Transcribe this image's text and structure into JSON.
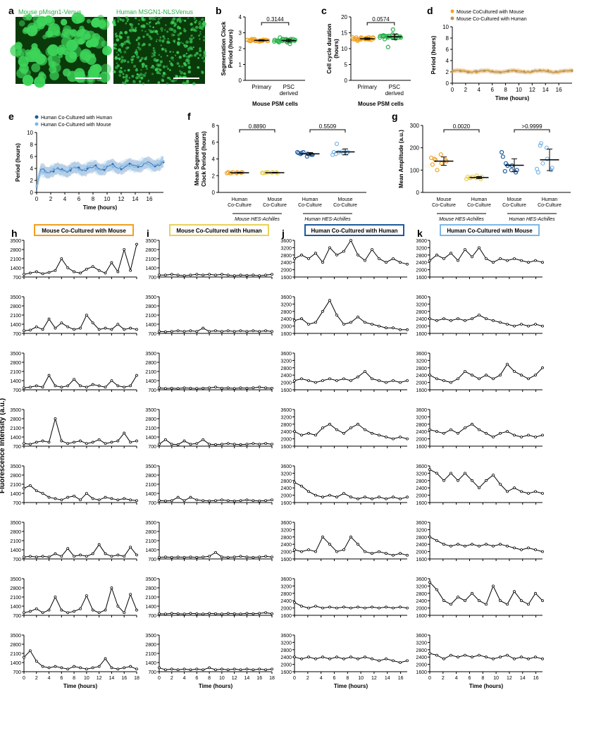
{
  "labels": {
    "a": "a",
    "b": "b",
    "c": "c",
    "d": "d",
    "e": "e",
    "f": "f",
    "g": "g",
    "h": "h",
    "i": "i",
    "j": "j",
    "k": "k"
  },
  "panel_a": {
    "left_title": "Mouse pMsgn1-Venus",
    "right_title": "Human MSGN1-NLSVenus",
    "title_color": "#2bb24c",
    "bg_color": "#0a3a0a"
  },
  "panel_b": {
    "title": "Segmentation Clock\nPeriod (hours)",
    "xlabel": "Mouse PSM cells",
    "categories": [
      "Primary",
      "PSC\nderived"
    ],
    "p_value": "0.3144",
    "ylim": [
      0,
      4
    ],
    "yticks": [
      0,
      1,
      2,
      3,
      4
    ],
    "groups": [
      {
        "color": "#f0a020",
        "values": [
          2.5,
          2.55,
          2.6,
          2.5,
          2.45,
          2.55,
          2.5,
          2.6,
          2.5,
          2.55,
          2.5,
          2.48,
          2.52,
          2.5,
          2.55,
          2.5,
          2.52,
          2.5,
          2.48,
          2.52,
          2.5,
          2.55
        ]
      },
      {
        "color": "#2bb24c",
        "values": [
          2.5,
          2.6,
          2.4,
          2.55,
          2.45,
          2.7,
          2.3,
          2.5,
          2.6,
          2.45,
          2.5,
          2.55,
          2.4,
          2.5,
          2.6,
          2.5,
          2.45,
          2.55,
          2.5,
          2.6,
          2.5,
          2.55,
          2.4,
          2.5,
          2.45,
          2.5,
          2.6
        ]
      }
    ]
  },
  "panel_c": {
    "title": "Cell cycle duration\n(hours)",
    "xlabel": "Mouse PSM cells",
    "categories": [
      "Primary",
      "PSC\nderived"
    ],
    "p_value": "0.0574",
    "ylim": [
      0,
      20
    ],
    "yticks": [
      0,
      5,
      10,
      15,
      20
    ],
    "groups": [
      {
        "color": "#f0a020",
        "values": [
          13,
          13.5,
          12.5,
          13.2,
          13,
          12.8,
          13.5,
          13,
          13.3,
          12.9,
          13.5,
          13,
          13.2,
          13,
          12.8,
          13.5,
          13,
          13.2,
          13,
          12.9,
          13.5,
          13,
          13.3,
          13,
          13.5,
          13
        ]
      },
      {
        "color": "#2bb24c",
        "values": [
          13.5,
          14,
          13,
          14.5,
          13.5,
          14,
          13.2,
          13.8,
          14,
          13.5,
          14.2,
          13.5,
          16,
          14,
          13.5,
          14,
          13.8,
          13.5,
          14,
          10.5,
          13.8,
          14,
          13.5,
          14.2,
          13.5,
          14
        ]
      }
    ]
  },
  "panel_d": {
    "legend": [
      "Mouse CoCultured with Mouse",
      "Mouse Co-Cultured with Human"
    ],
    "legend_colors": [
      "#f0a020",
      "#b8945a"
    ],
    "ylabel": "Period (hours)",
    "xlabel": "Time (hours)",
    "ylim": [
      0,
      10
    ],
    "yticks": [
      0,
      2,
      4,
      6,
      8,
      10
    ],
    "xlim": [
      0,
      18
    ],
    "xticks": [
      0,
      2,
      4,
      6,
      8,
      10,
      12,
      14,
      16
    ]
  },
  "panel_e": {
    "legend": [
      "Human Co-Cultured with Human",
      "Human Co-Cultured with Mouse"
    ],
    "legend_colors": [
      "#1e5a9e",
      "#7db8e8"
    ],
    "ylabel": "Period (hours)",
    "xlabel": "Time (hours)",
    "ylim": [
      0,
      10
    ],
    "yticks": [
      0,
      2,
      4,
      6,
      8,
      10
    ],
    "xlim": [
      0,
      18
    ],
    "xticks": [
      0,
      2,
      4,
      6,
      8,
      10,
      12,
      14,
      16
    ]
  },
  "panel_f": {
    "title": "Mean Segmentation\nClock Period (hours)",
    "ylim": [
      0,
      8
    ],
    "yticks": [
      0,
      2,
      4,
      6,
      8
    ],
    "p_values": [
      "0.8890",
      "0.5509"
    ],
    "group_labels": [
      "Human\nCo-Culture",
      "Mouse\nCo-Culture",
      "Human\nCo-Culture",
      "Mouse\nCo-Culture"
    ],
    "axis_labels": [
      "Mouse HES-Achilles",
      "Human HES-Achilles"
    ],
    "groups": [
      {
        "color": "#f0a020",
        "values": [
          2.3,
          2.4,
          2.3,
          2.4,
          2.3,
          2.4,
          2.35,
          2.3,
          2.4
        ]
      },
      {
        "color": "#e8d258",
        "values": [
          2.4,
          2.3,
          2.35,
          2.4,
          2.35,
          2.3,
          2.4,
          2.35,
          2.4
        ]
      },
      {
        "color": "#1e5a9e",
        "values": [
          4.7,
          4.5,
          4.8,
          4.6,
          4.3,
          4.7,
          4.5,
          4.6,
          4.8
        ]
      },
      {
        "color": "#7db8e8",
        "values": [
          5.8,
          4.8,
          4.5,
          4.7,
          4.9,
          4.8,
          4.7,
          4.6,
          4.8
        ]
      }
    ]
  },
  "panel_g": {
    "title": "Mean Amplitude (a.u.)",
    "ylim": [
      0,
      300
    ],
    "yticks": [
      0,
      100,
      200,
      300
    ],
    "p_values": [
      "0.0020",
      ">0.9999"
    ],
    "group_labels": [
      "Mouse\nCo-Culture",
      "Human\nCo-Culture",
      "Mouse\nCo-Culture",
      "Human\nCo-Culture"
    ],
    "axis_labels": [
      "Mouse HES-Achilles",
      "Human HES-Achilles"
    ],
    "groups": [
      {
        "color": "#f0a020",
        "values": [
          145,
          140,
          155,
          130,
          170,
          125,
          145,
          150,
          100
        ]
      },
      {
        "color": "#e8d258",
        "values": [
          65,
          70,
          60,
          75,
          65,
          70,
          60,
          65,
          70
        ]
      },
      {
        "color": "#1e5a9e",
        "values": [
          130,
          100,
          180,
          120,
          100,
          160,
          90,
          95,
          120
        ]
      },
      {
        "color": "#7db8e8",
        "values": [
          220,
          110,
          105,
          150,
          200,
          90,
          100,
          210,
          130
        ]
      }
    ]
  },
  "traces": {
    "global_ylabel": "Fluorescence Intensity (a.u.)",
    "xlabel": "Time (hours)",
    "columns": [
      {
        "title": "Mouse Co-Cultured with Mouse",
        "border_color": "#f0a020",
        "ylim": [
          700,
          3500
        ],
        "yticks": [
          700,
          1400,
          2100,
          2800,
          3500
        ],
        "xlim": [
          0,
          18
        ],
        "xticks": [
          0,
          2,
          4,
          6,
          8,
          10,
          12,
          14,
          16,
          18
        ],
        "rows": [
          [
            900,
            1000,
            1100,
            950,
            1050,
            1200,
            2100,
            1400,
            1100,
            1000,
            1300,
            1500,
            1200,
            1000,
            1800,
            1100,
            2800,
            1200,
            3200
          ],
          [
            900,
            950,
            1200,
            1000,
            1800,
            1100,
            1500,
            1200,
            1000,
            1100,
            2100,
            1500,
            1000,
            1100,
            1000,
            1400,
            1000,
            1100,
            1000
          ],
          [
            850,
            900,
            1000,
            900,
            1800,
            1000,
            900,
            1000,
            1500,
            1000,
            900,
            1100,
            1000,
            900,
            1400,
            1000,
            900,
            1000,
            1800
          ],
          [
            900,
            850,
            1000,
            1100,
            1000,
            2800,
            1100,
            900,
            1000,
            1100,
            900,
            1000,
            1200,
            900,
            1000,
            1100,
            1700,
            1000,
            1100
          ],
          [
            1800,
            2000,
            1600,
            1400,
            1100,
            1000,
            900,
            1100,
            1200,
            900,
            1400,
            1000,
            900,
            1100,
            1000,
            900,
            1000,
            900,
            850
          ],
          [
            850,
            900,
            850,
            900,
            850,
            1100,
            900,
            1500,
            900,
            1000,
            900,
            1100,
            1800,
            1100,
            900,
            1000,
            900,
            1600,
            1000
          ],
          [
            900,
            1000,
            1200,
            900,
            1100,
            2100,
            1100,
            900,
            1000,
            1200,
            2200,
            1100,
            900,
            1100,
            2800,
            1400,
            900,
            2300,
            1100
          ],
          [
            1800,
            2300,
            1500,
            1100,
            1000,
            1100,
            1000,
            900,
            1100,
            1000,
            900,
            1000,
            1100,
            1700,
            1000,
            900,
            1000,
            1100,
            900
          ]
        ]
      },
      {
        "title": "Mouse Co-Cultured with Human",
        "border_color": "#e8d258",
        "ylim": [
          700,
          3500
        ],
        "yticks": [
          700,
          1400,
          2100,
          2800,
          3500
        ],
        "xlim": [
          0,
          18
        ],
        "xticks": [
          0,
          2,
          4,
          6,
          8,
          10,
          12,
          14,
          16,
          18
        ],
        "rows": [
          [
            850,
            850,
            900,
            850,
            800,
            850,
            900,
            850,
            900,
            850,
            900,
            850,
            800,
            850,
            820,
            850,
            800,
            850,
            900
          ],
          [
            850,
            820,
            850,
            900,
            850,
            900,
            850,
            1100,
            850,
            900,
            850,
            900,
            850,
            900,
            850,
            900,
            850,
            900,
            850
          ],
          [
            850,
            800,
            820,
            800,
            850,
            820,
            800,
            820,
            850,
            900,
            820,
            850,
            800,
            850,
            820,
            850,
            900,
            850,
            820
          ],
          [
            850,
            1200,
            850,
            820,
            1100,
            850,
            900,
            1200,
            850,
            820,
            850,
            900,
            850,
            820,
            850,
            900,
            850,
            900,
            850
          ],
          [
            850,
            820,
            850,
            1100,
            850,
            1100,
            900,
            850,
            820,
            850,
            900,
            850,
            820,
            850,
            900,
            850,
            820,
            850,
            900
          ],
          [
            820,
            850,
            820,
            850,
            820,
            850,
            820,
            850,
            900,
            1200,
            850,
            820,
            850,
            900,
            850,
            820,
            850,
            900,
            850
          ],
          [
            820,
            800,
            850,
            820,
            800,
            850,
            820,
            800,
            850,
            820,
            800,
            850,
            820,
            800,
            850,
            820,
            850,
            900,
            820
          ],
          [
            1000,
            850,
            900,
            850,
            900,
            850,
            900,
            850,
            1000,
            850,
            900,
            850,
            900,
            850,
            900,
            850,
            900,
            850,
            900
          ]
        ]
      },
      {
        "title": "Human Co-Cultured with Human",
        "border_color": "#1e5a9e",
        "ylim": [
          1600,
          3600
        ],
        "yticks": [
          1600,
          2000,
          2400,
          2800,
          3200,
          3600
        ],
        "xlim": [
          0,
          17
        ],
        "xticks": [
          0,
          2,
          4,
          6,
          8,
          10,
          12,
          14,
          16
        ],
        "rows": [
          [
            2600,
            2800,
            2600,
            2900,
            2400,
            3200,
            2800,
            3000,
            3600,
            2800,
            2500,
            3100,
            2600,
            2400,
            2600,
            2400,
            2300
          ],
          [
            2300,
            2400,
            2100,
            2200,
            2800,
            3400,
            2600,
            2100,
            2200,
            2500,
            2200,
            2100,
            2000,
            1900,
            1900,
            1800,
            1800
          ],
          [
            2100,
            2200,
            2100,
            2000,
            2100,
            2200,
            2100,
            2200,
            2100,
            2300,
            2600,
            2200,
            2100,
            2000,
            2100,
            2000,
            2100
          ],
          [
            2400,
            2200,
            2300,
            2200,
            2600,
            2800,
            2500,
            2300,
            2600,
            2800,
            2500,
            2300,
            2200,
            2100,
            2000,
            2100,
            2000
          ],
          [
            2700,
            2500,
            2200,
            2000,
            1900,
            2000,
            1900,
            2100,
            1900,
            1800,
            1900,
            1800,
            1900,
            1800,
            1900,
            1800,
            1900
          ],
          [
            2100,
            2000,
            2100,
            2000,
            2800,
            2400,
            2000,
            2100,
            2800,
            2400,
            2000,
            1900,
            2000,
            1900,
            1800,
            1900,
            1800
          ],
          [
            2300,
            2100,
            2000,
            2100,
            2000,
            2050,
            2000,
            2050,
            2000,
            2050,
            2000,
            2050,
            2000,
            2050,
            2000,
            2050,
            2000
          ],
          [
            2400,
            2300,
            2400,
            2300,
            2400,
            2300,
            2400,
            2300,
            2400,
            2300,
            2400,
            2300,
            2200,
            2300,
            2200,
            2100,
            2200
          ]
        ]
      },
      {
        "title": "Human Co-Cultured with Mouse",
        "border_color": "#7db8e8",
        "ylim": [
          1600,
          3600
        ],
        "yticks": [
          1600,
          2000,
          2400,
          2800,
          3200,
          3600
        ],
        "xlim": [
          0,
          17
        ],
        "xticks": [
          0,
          2,
          4,
          6,
          8,
          10,
          12,
          14,
          16
        ],
        "rows": [
          [
            2500,
            2800,
            2600,
            2900,
            2500,
            3100,
            2700,
            3200,
            2600,
            2400,
            2600,
            2500,
            2600,
            2500,
            2400,
            2500,
            2400
          ],
          [
            2400,
            2300,
            2400,
            2300,
            2400,
            2300,
            2400,
            2600,
            2400,
            2300,
            2200,
            2100,
            2000,
            2100,
            2000,
            2100,
            2000
          ],
          [
            2400,
            2200,
            2100,
            2000,
            2200,
            2600,
            2400,
            2200,
            2400,
            2200,
            2400,
            3000,
            2600,
            2400,
            2200,
            2400,
            2800
          ],
          [
            2500,
            2400,
            2300,
            2500,
            2300,
            2600,
            2800,
            2500,
            2300,
            2100,
            2300,
            2400,
            2200,
            2100,
            2200,
            2100,
            2200
          ],
          [
            3400,
            3200,
            2800,
            3200,
            2800,
            3200,
            2800,
            2400,
            2800,
            3100,
            2600,
            2200,
            2400,
            2200,
            2100,
            2200,
            2100
          ],
          [
            2800,
            2600,
            2400,
            2300,
            2400,
            2300,
            2400,
            2300,
            2400,
            2300,
            2400,
            2300,
            2200,
            2100,
            2200,
            2100,
            2000
          ],
          [
            3400,
            3000,
            2400,
            2200,
            2600,
            2400,
            2800,
            2400,
            2200,
            3200,
            2400,
            2200,
            2900,
            2400,
            2200,
            2800,
            2400
          ],
          [
            2600,
            2500,
            2300,
            2500,
            2400,
            2500,
            2400,
            2500,
            2400,
            2300,
            2400,
            2500,
            2300,
            2400,
            2300,
            2400,
            2300
          ]
        ]
      }
    ]
  },
  "style": {
    "font_family": "Arial, Helvetica, sans-serif",
    "label_fontsize": 8,
    "panel_label_fontsize": 14,
    "axis_color": "#000000",
    "marker_size": 3,
    "line_width": 1
  }
}
